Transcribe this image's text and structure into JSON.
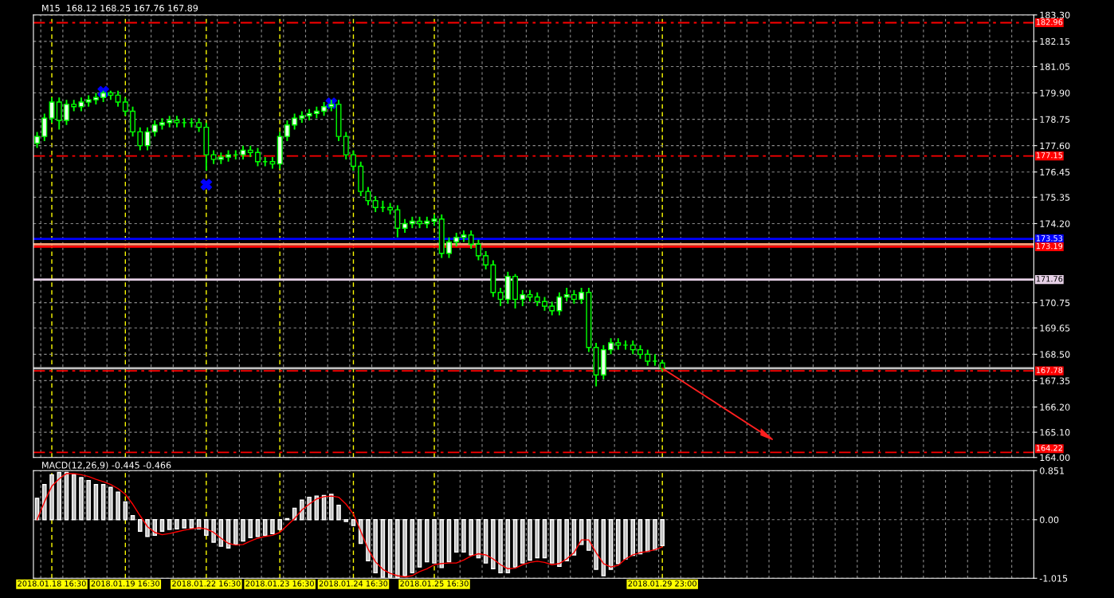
{
  "chart_data": [
    {
      "type": "candlestick",
      "title": "M15  168.12 168.25 167.76 167.89",
      "color": "#00ff00",
      "categories": [
        null,
        null,
        null,
        null,
        null,
        null,
        null,
        null,
        null,
        null,
        null,
        null,
        null,
        null,
        null,
        null,
        null,
        null,
        null,
        null,
        null,
        null,
        null,
        null,
        null,
        null,
        null,
        null,
        null,
        null,
        null,
        null,
        null,
        null,
        null,
        null,
        null,
        null,
        null,
        null,
        null,
        null,
        null,
        null,
        null,
        null,
        null,
        null,
        null,
        null,
        null,
        null,
        null,
        null,
        null,
        null,
        null,
        null,
        null,
        null,
        null,
        null,
        null,
        null,
        null,
        null,
        null,
        null,
        null,
        null,
        null,
        null,
        null,
        null,
        null,
        null,
        null,
        null,
        null,
        null,
        null,
        null,
        null,
        null,
        null,
        null,
        null,
        null,
        null,
        null,
        null,
        null,
        null,
        null,
        null,
        null,
        null,
        null,
        null,
        null,
        null,
        null,
        null,
        null,
        null,
        null,
        null,
        null,
        null,
        null,
        null,
        null,
        null,
        null,
        null,
        null,
        null,
        null,
        null,
        null,
        null,
        null,
        null,
        null,
        null,
        null,
        null,
        null,
        null,
        null,
        null,
        null,
        null,
        null,
        null,
        null
      ],
      "ohlc": [
        [
          177.7,
          178.2,
          177.5,
          178.0
        ],
        [
          178.0,
          179.0,
          177.8,
          178.8
        ],
        [
          178.8,
          179.7,
          178.6,
          179.5
        ],
        [
          179.5,
          179.7,
          178.3,
          178.7
        ],
        [
          178.7,
          179.6,
          178.5,
          179.4
        ],
        [
          179.4,
          179.6,
          179.1,
          179.3
        ],
        [
          179.3,
          179.7,
          179.1,
          179.5
        ],
        [
          179.5,
          179.8,
          179.3,
          179.6
        ],
        [
          179.6,
          179.9,
          179.4,
          179.7
        ],
        [
          179.7,
          180.0,
          179.5,
          179.9
        ],
        [
          179.9,
          180.0,
          179.6,
          179.8
        ],
        [
          179.8,
          180.0,
          179.3,
          179.5
        ],
        [
          179.5,
          179.7,
          178.9,
          179.1
        ],
        [
          179.1,
          179.3,
          178.0,
          178.2
        ],
        [
          178.2,
          178.4,
          177.4,
          177.6
        ],
        [
          177.6,
          178.4,
          177.4,
          178.2
        ],
        [
          178.2,
          178.7,
          178.0,
          178.5
        ],
        [
          178.5,
          178.8,
          178.3,
          178.6
        ],
        [
          178.6,
          178.9,
          178.4,
          178.7
        ],
        [
          178.7,
          178.9,
          178.4,
          178.6
        ],
        [
          178.6,
          178.8,
          178.4,
          178.6
        ],
        [
          178.6,
          178.8,
          178.4,
          178.6
        ],
        [
          178.6,
          178.8,
          178.2,
          178.4
        ],
        [
          178.4,
          178.6,
          176.5,
          177.2
        ],
        [
          177.2,
          177.4,
          176.8,
          177.0
        ],
        [
          177.0,
          177.3,
          176.8,
          177.1
        ],
        [
          177.1,
          177.4,
          176.9,
          177.2
        ],
        [
          177.2,
          177.4,
          177.0,
          177.2
        ],
        [
          177.2,
          177.6,
          177.0,
          177.4
        ],
        [
          177.4,
          177.6,
          177.1,
          177.3
        ],
        [
          177.3,
          177.5,
          176.7,
          176.9
        ],
        [
          176.9,
          177.1,
          176.7,
          176.9
        ],
        [
          176.9,
          177.1,
          176.6,
          176.8
        ],
        [
          176.8,
          178.2,
          176.6,
          178.0
        ],
        [
          178.0,
          178.7,
          177.8,
          178.5
        ],
        [
          178.5,
          179.0,
          178.3,
          178.8
        ],
        [
          178.8,
          179.1,
          178.6,
          178.9
        ],
        [
          178.9,
          179.2,
          178.7,
          179.0
        ],
        [
          179.0,
          179.3,
          178.8,
          179.1
        ],
        [
          179.1,
          179.5,
          178.9,
          179.3
        ],
        [
          179.3,
          179.6,
          179.1,
          179.4
        ],
        [
          179.4,
          179.6,
          177.8,
          178.0
        ],
        [
          178.0,
          178.2,
          177.0,
          177.2
        ],
        [
          177.2,
          177.4,
          176.5,
          176.7
        ],
        [
          176.7,
          176.9,
          175.4,
          175.6
        ],
        [
          175.6,
          175.8,
          175.0,
          175.2
        ],
        [
          175.2,
          175.4,
          174.7,
          174.9
        ],
        [
          174.9,
          175.2,
          174.7,
          174.9
        ],
        [
          174.9,
          175.1,
          174.6,
          174.8
        ],
        [
          174.8,
          175.0,
          173.6,
          174.0
        ],
        [
          174.0,
          174.4,
          173.8,
          174.2
        ],
        [
          174.2,
          174.5,
          174.0,
          174.3
        ],
        [
          174.3,
          174.5,
          174.0,
          174.2
        ],
        [
          174.2,
          174.5,
          174.0,
          174.3
        ],
        [
          174.3,
          174.6,
          174.1,
          174.4
        ],
        [
          174.4,
          174.6,
          172.7,
          172.9
        ],
        [
          172.9,
          173.6,
          172.7,
          173.4
        ],
        [
          173.4,
          173.8,
          173.2,
          173.6
        ],
        [
          173.6,
          173.9,
          173.4,
          173.7
        ],
        [
          173.7,
          173.9,
          173.1,
          173.3
        ],
        [
          173.3,
          173.5,
          172.6,
          172.8
        ],
        [
          172.8,
          173.0,
          172.2,
          172.4
        ],
        [
          172.4,
          172.6,
          171.0,
          171.2
        ],
        [
          171.2,
          171.4,
          170.6,
          170.9
        ],
        [
          170.9,
          172.1,
          170.7,
          171.9
        ],
        [
          171.9,
          172.0,
          170.5,
          170.9
        ],
        [
          170.9,
          171.3,
          170.6,
          171.1
        ],
        [
          171.1,
          171.3,
          170.8,
          171.0
        ],
        [
          171.0,
          171.2,
          170.6,
          170.8
        ],
        [
          170.8,
          171.0,
          170.4,
          170.6
        ],
        [
          170.6,
          170.8,
          170.2,
          170.4
        ],
        [
          170.4,
          171.2,
          170.2,
          171.0
        ],
        [
          171.0,
          171.4,
          170.8,
          171.1
        ],
        [
          171.1,
          171.3,
          170.7,
          170.9
        ],
        [
          170.9,
          171.4,
          170.7,
          171.2
        ],
        [
          171.2,
          171.4,
          168.6,
          168.8
        ],
        [
          168.8,
          169.0,
          167.1,
          167.6
        ],
        [
          167.6,
          168.9,
          167.4,
          168.7
        ],
        [
          168.7,
          169.2,
          168.5,
          169.0
        ],
        [
          169.0,
          169.2,
          168.7,
          168.9
        ],
        [
          168.9,
          169.1,
          168.7,
          168.9
        ],
        [
          168.9,
          169.1,
          168.5,
          168.7
        ],
        [
          168.7,
          168.9,
          168.3,
          168.5
        ],
        [
          168.5,
          168.7,
          168.0,
          168.2
        ],
        [
          168.2,
          168.5,
          168.0,
          168.2
        ],
        [
          168.12,
          168.25,
          167.76,
          167.89
        ],
        null,
        null,
        null,
        null,
        null,
        null,
        null,
        null,
        null,
        null,
        null,
        null,
        null,
        null,
        null,
        null,
        null,
        null,
        null,
        null,
        null,
        null,
        null,
        null,
        null,
        null,
        null,
        null,
        null,
        null,
        null,
        null,
        null,
        null,
        null,
        null,
        null,
        null,
        null,
        null,
        null,
        null,
        null,
        null,
        null,
        null,
        null,
        null,
        null,
        null
      ],
      "series": [
        {
          "type": "scatter",
          "color": "#0000ff",
          "marker": "cross",
          "values": [
            null,
            null,
            null,
            null,
            null,
            null,
            null,
            null,
            null,
            179.95,
            null,
            null,
            null,
            null,
            null,
            null,
            null,
            null,
            null,
            null,
            null,
            null,
            null,
            175.9,
            null,
            null,
            null,
            null,
            null,
            null,
            null,
            null,
            null,
            null,
            null,
            null,
            null,
            null,
            null,
            null,
            179.45,
            null,
            null,
            null,
            null,
            null,
            null,
            null,
            null,
            null,
            null,
            null,
            null,
            null,
            null,
            null,
            null,
            null,
            null,
            null,
            null,
            null,
            null,
            null,
            null,
            null,
            null,
            null,
            null,
            null,
            null,
            null,
            null,
            null,
            null,
            null,
            null,
            null,
            null,
            null,
            null,
            null,
            null,
            null,
            null,
            null,
            null,
            null,
            null,
            null,
            null,
            null,
            null,
            null,
            null,
            null,
            null,
            null,
            null,
            null,
            null,
            null,
            null,
            null,
            null,
            null,
            null,
            null,
            null,
            null,
            null,
            null,
            null,
            null,
            null,
            null,
            null,
            null,
            null,
            null,
            null,
            null,
            null,
            null,
            null,
            null,
            null,
            null,
            null,
            null,
            null,
            null,
            null,
            null,
            null,
            null
          ]
        }
      ],
      "ylim": [
        164.0,
        183.3
      ],
      "yticks": [
        {
          "value": 183.3,
          "label": "183.30"
        },
        182.15,
        181.05,
        {
          "value": 179.9,
          "label": "179.90"
        },
        178.75,
        {
          "value": 177.6,
          "label": "177.60"
        },
        176.45,
        175.35,
        {
          "value": 174.2,
          "label": "174.20"
        },
        170.75,
        169.65,
        {
          "value": 168.5,
          "label": "168.50"
        },
        167.35,
        {
          "value": 166.2,
          "label": "166.20"
        },
        {
          "value": 165.1,
          "label": "165.10"
        },
        {
          "value": 164.0,
          "label": "164.00"
        }
      ],
      "ref_lines": [
        {
          "axis": "y",
          "value": 182.96,
          "label": "182.96",
          "color": "#ff0000",
          "line_style": "dashdot"
        },
        {
          "axis": "y",
          "value": 177.15,
          "label": "177.15",
          "color": "#ff0000",
          "line_style": "dashdot"
        },
        {
          "axis": "y",
          "value": 173.53,
          "label": "173.53",
          "color": "#0000ff",
          "line_style": "solid"
        },
        {
          "axis": "y",
          "value": 173.3,
          "label": null,
          "color": "#ffa07a",
          "line_style": "solid"
        },
        {
          "axis": "y",
          "value": 173.19,
          "label": "173.19",
          "color": "#ff0000",
          "line_style": "solid"
        },
        {
          "axis": "y",
          "value": 171.76,
          "label": "171.76",
          "color": "#e6d0e6",
          "line_style": "solid"
        },
        {
          "axis": "y",
          "value": 167.89,
          "label": null,
          "color": "#c0c0c0",
          "line_style": "solid"
        },
        {
          "axis": "y",
          "value": 167.78,
          "label": "167.78",
          "color": "#ff0000",
          "line_style": "dashdot"
        },
        {
          "axis": "y",
          "value": 164.22,
          "label": "164.22",
          "color": "#ff0000",
          "line_style": "dashdot"
        }
      ],
      "grid": true,
      "legend": false,
      "tick_labels": "y"
    },
    {
      "type": "bar",
      "title": "MACD(12,26,9) -0.445 -0.466",
      "categories": [
        null,
        null,
        "2018.01.18 16:30",
        null,
        null,
        null,
        null,
        null,
        null,
        null,
        null,
        null,
        "2018.01.19 16:30",
        null,
        null,
        null,
        null,
        null,
        null,
        null,
        null,
        null,
        null,
        "2018.01.22 16:30",
        null,
        null,
        null,
        null,
        null,
        null,
        null,
        null,
        null,
        "2018.01.23 16:30",
        null,
        null,
        null,
        null,
        null,
        null,
        null,
        null,
        null,
        "2018.01.24 16:30",
        null,
        null,
        null,
        null,
        null,
        null,
        null,
        null,
        null,
        null,
        "2018.01.25 16:30",
        null,
        null,
        null,
        null,
        null,
        null,
        null,
        null,
        null,
        null,
        null,
        null,
        null,
        null,
        null,
        null,
        null,
        null,
        null,
        null,
        null,
        null,
        null,
        null,
        null,
        null,
        null,
        null,
        null,
        null,
        "2018.01.29 23:00",
        null,
        null,
        null,
        null,
        null,
        null,
        null,
        null,
        null,
        null,
        null,
        null,
        null,
        null,
        null,
        null,
        null,
        null,
        null,
        null,
        null,
        null,
        null,
        null,
        null,
        null,
        null,
        null,
        null,
        null,
        null,
        null,
        null,
        null,
        null,
        null,
        null,
        null,
        null,
        null,
        null,
        null,
        null,
        null,
        null,
        null,
        null,
        null,
        null,
        null
      ],
      "series": [
        {
          "type": "bar",
          "color": "#c0c0c0",
          "values": [
            0.37,
            0.61,
            0.78,
            0.82,
            0.82,
            0.78,
            0.73,
            0.68,
            0.61,
            0.61,
            0.56,
            0.48,
            0.31,
            0.07,
            -0.2,
            -0.29,
            -0.27,
            -0.2,
            -0.17,
            -0.16,
            -0.14,
            -0.14,
            -0.16,
            -0.27,
            -0.39,
            -0.46,
            -0.49,
            -0.43,
            -0.37,
            -0.31,
            -0.29,
            -0.27,
            -0.24,
            -0.17,
            0.02,
            0.2,
            0.34,
            0.39,
            0.41,
            0.42,
            0.44,
            0.25,
            -0.03,
            -0.1,
            -0.41,
            -0.71,
            -0.92,
            -1.0,
            -1.0,
            -1.01,
            -0.97,
            -0.92,
            -0.82,
            -0.73,
            -0.75,
            -0.83,
            -0.73,
            -0.56,
            -0.56,
            -0.61,
            -0.66,
            -0.75,
            -0.85,
            -0.92,
            -0.92,
            -0.82,
            -0.75,
            -0.7,
            -0.66,
            -0.66,
            -0.75,
            -0.81,
            -0.71,
            -0.61,
            -0.43,
            -0.53,
            -0.86,
            -0.97,
            -0.86,
            -0.76,
            -0.68,
            -0.62,
            -0.59,
            -0.55,
            -0.52,
            -0.45,
            null,
            null,
            null,
            null,
            null,
            null,
            null,
            null,
            null,
            null,
            null,
            null,
            null,
            null,
            null,
            null,
            null,
            null,
            null,
            null,
            null,
            null,
            null,
            null,
            null,
            null,
            null,
            null,
            null,
            null,
            null,
            null,
            null,
            null,
            null,
            null,
            null,
            null,
            null,
            null,
            null,
            null,
            null,
            null,
            null,
            null,
            null,
            null,
            null,
            null
          ]
        },
        {
          "type": "line",
          "color": "#ff0000",
          "values": [
            0.0,
            0.31,
            0.58,
            0.71,
            0.8,
            0.8,
            0.78,
            0.75,
            0.7,
            0.66,
            0.61,
            0.54,
            0.44,
            0.27,
            0.07,
            -0.12,
            -0.22,
            -0.26,
            -0.24,
            -0.21,
            -0.18,
            -0.16,
            -0.14,
            -0.16,
            -0.22,
            -0.32,
            -0.41,
            -0.44,
            -0.43,
            -0.37,
            -0.32,
            -0.29,
            -0.27,
            -0.22,
            -0.1,
            0.02,
            0.17,
            0.27,
            0.36,
            0.4,
            0.41,
            0.39,
            0.27,
            0.1,
            -0.2,
            -0.51,
            -0.73,
            -0.86,
            -0.93,
            -0.97,
            -0.99,
            -0.97,
            -0.9,
            -0.85,
            -0.78,
            -0.76,
            -0.75,
            -0.75,
            -0.7,
            -0.63,
            -0.59,
            -0.61,
            -0.68,
            -0.78,
            -0.85,
            -0.84,
            -0.78,
            -0.74,
            -0.72,
            -0.74,
            -0.78,
            -0.76,
            -0.68,
            -0.57,
            -0.35,
            -0.35,
            -0.57,
            -0.76,
            -0.82,
            -0.79,
            -0.68,
            -0.61,
            -0.57,
            -0.55,
            -0.52,
            -0.47,
            null,
            null,
            null,
            null,
            null,
            null,
            null,
            null,
            null,
            null,
            null,
            null,
            null,
            null,
            null,
            null,
            null,
            null,
            null,
            null,
            null,
            null,
            null,
            null,
            null,
            null,
            null,
            null,
            null,
            null,
            null,
            null,
            null,
            null,
            null,
            null,
            null,
            null,
            null,
            null,
            null,
            null,
            null,
            null,
            null,
            null,
            null,
            null,
            null,
            null
          ]
        }
      ],
      "ylim": [
        -1.015,
        0.851
      ],
      "yticks": [
        0.851,
        {
          "value": 0.0,
          "label": "0.00"
        },
        -1.015
      ],
      "grid": true,
      "legend": false
    }
  ]
}
